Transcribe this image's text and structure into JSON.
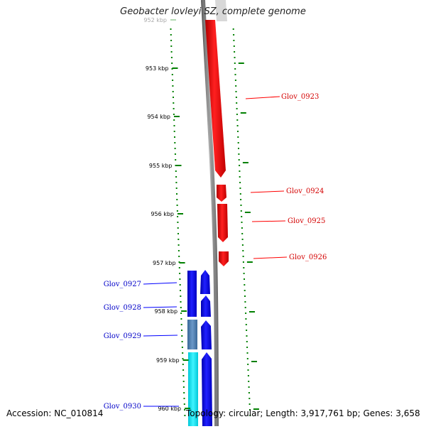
{
  "title": "Geobacter lovleyi SZ, complete genome",
  "footer": {
    "accession": "Accession: NC_010814",
    "topology": "Topology: circular; Length: 3,917,761 bp; Genes: 3,658"
  },
  "ticks": [
    {
      "label": "952 kbp",
      "faded": true
    },
    {
      "label": "953 kbp"
    },
    {
      "label": "954 kbp"
    },
    {
      "label": "955 kbp"
    },
    {
      "label": "956 kbp"
    },
    {
      "label": "957 kbp"
    },
    {
      "label": "958 kbp"
    },
    {
      "label": "959 kbp"
    },
    {
      "label": "960 kbp"
    }
  ],
  "genes_forward": [
    {
      "name": "Glov_0923",
      "color": "#ff0000"
    },
    {
      "name": "Glov_0924",
      "color": "#ff0000"
    },
    {
      "name": "Glov_0925",
      "color": "#ff0000"
    },
    {
      "name": "Glov_0926",
      "color": "#ff0000"
    }
  ],
  "genes_reverse": [
    {
      "name": "Glov_0927",
      "color": "#0000ff"
    },
    {
      "name": "Glov_0928",
      "color": "#0000ff"
    },
    {
      "name": "Glov_0929",
      "color": "#0000ff"
    },
    {
      "name": "Glov_0930",
      "color": "#0000ff"
    }
  ],
  "colors": {
    "forward_strand": "#ff0000",
    "reverse_strand": "#0000ff",
    "cog_track_1": "#4a78a8",
    "cog_track_2": "#00e5ee",
    "backbone": "#7f7f7f",
    "ticks": "#008000"
  }
}
